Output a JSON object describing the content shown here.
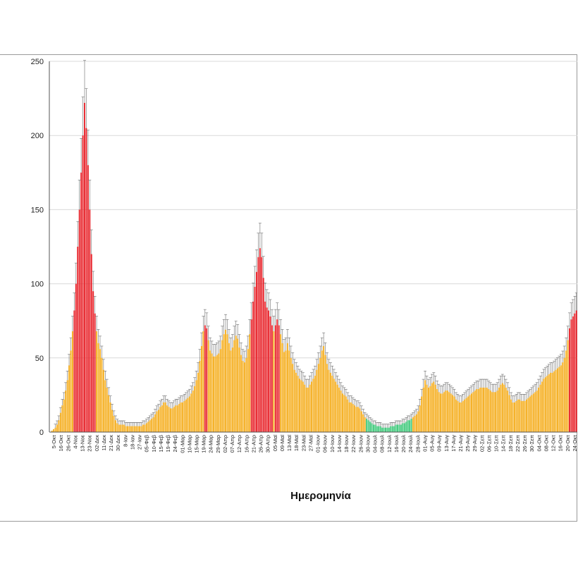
{
  "chart_data": {
    "type": "bar",
    "title": "",
    "xlabel": "Ημερομηνία",
    "ylabel": "",
    "ylim": [
      0,
      250
    ],
    "yticks": [
      0,
      50,
      100,
      150,
      200,
      250
    ],
    "grid": true,
    "error_bars": true,
    "colors": {
      "high": "#e8242b",
      "mid": "#f5ae1f",
      "low": "#3ec97a",
      "grid": "#d9d9d9",
      "axis": "#555555",
      "error": "#6b6b6b"
    },
    "level_thresholds": {
      "high": 70,
      "low": 10
    },
    "xtick_labels": [
      "5-Οκτ",
      "16-Οκτ",
      "26-Οκτ",
      "4-Νοε",
      "13-Νοε",
      "23-Νοε",
      "02-Δεκ",
      "11-Δεκ",
      "21-Δεκ",
      "30-Δεκ",
      "8-Ιαν",
      "18-Ιαν",
      "27-Ιαν",
      "05-Φεβ",
      "10-Φεβ",
      "15-Φεβ",
      "19-Φεβ",
      "24-Φεβ",
      "01-Μαρ",
      "10-Μαρ",
      "15-Μαρ",
      "19-Μαρ",
      "24-Μαρ",
      "29-Μαρ",
      "02-Απρ",
      "07-Απρ",
      "12-Απρ",
      "16-Απρ",
      "21-Απρ",
      "26-Απρ",
      "30-Απρ",
      "05-Μαϊ",
      "09-Μαϊ",
      "13-Μαϊ",
      "18-Μαϊ",
      "23-Μαϊ",
      "27-Μαϊ",
      "01-Ιουν",
      "06-Ιουν",
      "10-Ιουν",
      "14-Ιουν",
      "18-Ιουν",
      "22-Ιουν",
      "26-Ιουν",
      "30-Ιουν",
      "04-Ιουλ",
      "08-Ιουλ",
      "12-Ιουλ",
      "16-Ιουλ",
      "20-Ιουλ",
      "24-Ιουλ",
      "28-Ιουλ",
      "01-Αυγ",
      "05-Αυγ",
      "09-Αυγ",
      "13-Αυγ",
      "17-Αυγ",
      "21-Αυγ",
      "25-Αυγ",
      "29-Αυγ",
      "02-Σεπ",
      "06-Σεπ",
      "10-Σεπ",
      "14-Σεπ",
      "18-Σεπ",
      "22-Σεπ",
      "26-Σεπ",
      "30-Σεπ",
      "04-Οκτ",
      "08-Οκτ",
      "12-Οκτ",
      "16-Οκτ",
      "20-Οκτ",
      "24-Οκτ"
    ],
    "values": [
      0,
      1,
      2,
      3,
      5,
      8,
      13,
      18,
      22,
      28,
      35,
      45,
      55,
      68,
      82,
      100,
      125,
      150,
      175,
      200,
      222,
      205,
      180,
      150,
      120,
      95,
      80,
      68,
      60,
      56,
      50,
      42,
      35,
      30,
      25,
      20,
      15,
      11,
      8,
      6,
      5,
      5,
      5,
      5,
      4,
      4,
      4,
      4,
      4,
      4,
      4,
      4,
      4,
      4,
      5,
      5,
      6,
      7,
      8,
      9,
      10,
      12,
      14,
      15,
      17,
      18,
      20,
      20,
      18,
      17,
      16,
      16,
      17,
      18,
      18,
      19,
      20,
      20,
      21,
      22,
      23,
      24,
      26,
      28,
      31,
      35,
      40,
      48,
      58,
      68,
      72,
      70,
      62,
      55,
      53,
      51,
      51,
      52,
      53,
      56,
      62,
      66,
      69,
      66,
      60,
      55,
      57,
      62,
      65,
      63,
      57,
      52,
      48,
      47,
      50,
      56,
      66,
      76,
      88,
      98,
      108,
      118,
      124,
      118,
      104,
      88,
      84,
      82,
      78,
      72,
      68,
      72,
      76,
      72,
      66,
      60,
      54,
      55,
      60,
      55,
      50,
      46,
      42,
      40,
      38,
      36,
      35,
      34,
      32,
      30,
      30,
      32,
      34,
      36,
      38,
      42,
      46,
      50,
      55,
      58,
      52,
      46,
      42,
      40,
      38,
      36,
      34,
      32,
      30,
      28,
      26,
      25,
      24,
      22,
      20,
      20,
      19,
      18,
      17,
      17,
      16,
      14,
      12,
      10,
      9,
      8,
      7,
      6,
      5,
      5,
      4,
      4,
      4,
      3,
      3,
      3,
      3,
      3,
      4,
      4,
      4,
      5,
      5,
      5,
      5,
      6,
      6,
      7,
      8,
      8,
      9,
      10,
      11,
      12,
      14,
      18,
      24,
      30,
      35,
      32,
      30,
      31,
      33,
      34,
      32,
      29,
      27,
      26,
      26,
      27,
      28,
      28,
      27,
      26,
      25,
      24,
      22,
      21,
      20,
      20,
      21,
      22,
      23,
      24,
      25,
      26,
      27,
      28,
      29,
      29,
      30,
      30,
      30,
      30,
      30,
      29,
      28,
      27,
      27,
      27,
      28,
      30,
      32,
      33,
      32,
      30,
      28,
      25,
      22,
      20,
      20,
      21,
      22,
      22,
      21,
      21,
      21,
      22,
      23,
      24,
      25,
      26,
      27,
      28,
      30,
      32,
      34,
      36,
      37,
      38,
      39,
      40,
      40,
      41,
      42,
      43,
      44,
      45,
      47,
      50,
      55,
      62,
      70,
      76,
      78,
      80,
      82
    ]
  },
  "xaxis": {
    "title": "Ημερομηνία"
  }
}
